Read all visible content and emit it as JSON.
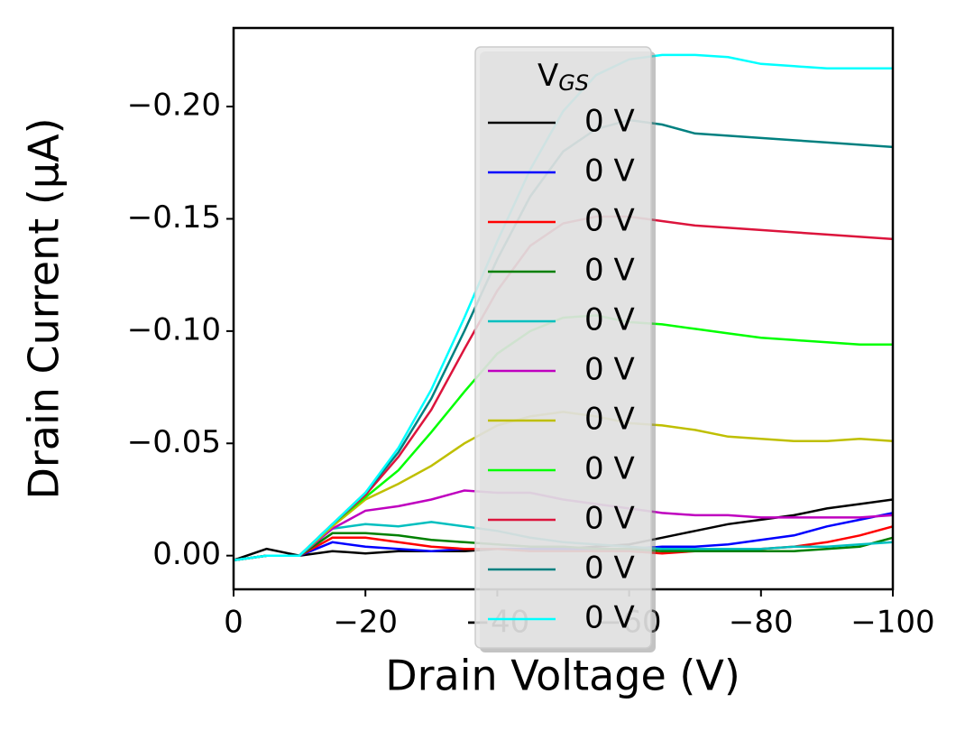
{
  "chart_data": {
    "type": "line",
    "x_label": "Drain Voltage (V)",
    "y_label": "Drain Current (μA)",
    "legend_title": "V",
    "legend_title_subscript": "GS",
    "legend": "upper center",
    "xlim": [
      0,
      -100
    ],
    "xticks": [
      0,
      {
        "value": -20,
        "label": "−20"
      },
      {
        "value": -40,
        "label": "−40"
      },
      {
        "value": -60,
        "label": "−60"
      },
      {
        "value": -80,
        "label": "−80"
      },
      {
        "value": -100,
        "label": "−100"
      }
    ],
    "ylim": [
      0.015,
      -0.235
    ],
    "yticks": [
      {
        "value": 0,
        "label": "0.00"
      },
      {
        "value": -0.05,
        "label": "−0.05"
      },
      {
        "value": -0.1,
        "label": "−0.10"
      },
      {
        "value": -0.15,
        "label": "−0.15"
      },
      {
        "value": -0.2,
        "label": "−0.20"
      }
    ],
    "x": [
      0,
      -5,
      -10,
      -15,
      -20,
      -25,
      -30,
      -35,
      -40,
      -45,
      -50,
      -55,
      -60,
      -65,
      -70,
      -75,
      -80,
      -85,
      -90,
      -95,
      -100
    ],
    "series": [
      {
        "name": "0 V",
        "color": "#000000",
        "values": [
          0.002,
          -0.003,
          0,
          -0.002,
          -0.001,
          -0.002,
          -0.002,
          -0.002,
          -0.003,
          -0.003,
          -0.003,
          -0.004,
          -0.005,
          -0.008,
          -0.011,
          -0.014,
          -0.016,
          -0.018,
          -0.021,
          -0.023,
          -0.025
        ]
      },
      {
        "name": "0 V",
        "color": "#0000ff",
        "values": [
          0.002,
          0,
          0,
          -0.006,
          -0.004,
          -0.003,
          -0.002,
          -0.003,
          -0.003,
          -0.003,
          -0.003,
          -0.003,
          -0.003,
          -0.004,
          -0.004,
          -0.005,
          -0.007,
          -0.009,
          -0.013,
          -0.016,
          -0.019
        ]
      },
      {
        "name": "0 V",
        "color": "#ff0000",
        "values": [
          0.002,
          0,
          0,
          -0.008,
          -0.008,
          -0.006,
          -0.004,
          -0.003,
          -0.003,
          -0.002,
          -0.002,
          -0.002,
          -0.002,
          -0.001,
          -0.002,
          -0.002,
          -0.003,
          -0.004,
          -0.006,
          -0.009,
          -0.013
        ]
      },
      {
        "name": "0 V",
        "color": "#008000",
        "values": [
          0.002,
          0,
          0,
          -0.01,
          -0.01,
          -0.009,
          -0.007,
          -0.006,
          -0.005,
          -0.004,
          -0.004,
          -0.003,
          -0.003,
          -0.002,
          -0.002,
          -0.002,
          -0.002,
          -0.002,
          -0.003,
          -0.004,
          -0.008
        ]
      },
      {
        "name": "0 V",
        "color": "#00bfbf",
        "values": [
          0.002,
          0,
          0,
          -0.012,
          -0.014,
          -0.013,
          -0.015,
          -0.013,
          -0.011,
          -0.008,
          -0.006,
          -0.005,
          -0.004,
          -0.003,
          -0.003,
          -0.003,
          -0.003,
          -0.004,
          -0.004,
          -0.005,
          -0.006
        ]
      },
      {
        "name": "0 V",
        "color": "#bf00bf",
        "values": [
          0.002,
          0,
          0,
          -0.012,
          -0.02,
          -0.022,
          -0.025,
          -0.029,
          -0.028,
          -0.028,
          -0.025,
          -0.023,
          -0.021,
          -0.019,
          -0.018,
          -0.018,
          -0.017,
          -0.017,
          -0.017,
          -0.017,
          -0.018
        ]
      },
      {
        "name": "0 V",
        "color": "#bfbf00",
        "values": [
          0.002,
          0,
          0,
          -0.013,
          -0.025,
          -0.032,
          -0.04,
          -0.05,
          -0.058,
          -0.062,
          -0.064,
          -0.062,
          -0.059,
          -0.058,
          -0.056,
          -0.053,
          -0.052,
          -0.051,
          -0.051,
          -0.052,
          -0.051
        ]
      },
      {
        "name": "0 V",
        "color": "#00ff00",
        "values": [
          0.002,
          0,
          0,
          -0.014,
          -0.026,
          -0.038,
          -0.055,
          -0.073,
          -0.09,
          -0.1,
          -0.106,
          -0.107,
          -0.104,
          -0.103,
          -0.101,
          -0.099,
          -0.097,
          -0.096,
          -0.095,
          -0.094,
          -0.094
        ]
      },
      {
        "name": "0 V",
        "color": "#dc143c",
        "values": [
          0.002,
          0,
          0,
          -0.014,
          -0.027,
          -0.044,
          -0.065,
          -0.092,
          -0.118,
          -0.138,
          -0.148,
          -0.151,
          -0.151,
          -0.149,
          -0.147,
          -0.146,
          -0.145,
          -0.144,
          -0.143,
          -0.142,
          -0.141
        ]
      },
      {
        "name": "0 V",
        "color": "#008080",
        "values": [
          0.002,
          0,
          0,
          -0.014,
          -0.028,
          -0.046,
          -0.07,
          -0.1,
          -0.132,
          -0.16,
          -0.18,
          -0.19,
          -0.194,
          -0.192,
          -0.188,
          -0.187,
          -0.186,
          -0.185,
          -0.184,
          -0.183,
          -0.182
        ]
      },
      {
        "name": "0 V",
        "color": "#00ffff",
        "values": [
          0.002,
          0,
          0,
          -0.014,
          -0.028,
          -0.048,
          -0.074,
          -0.106,
          -0.14,
          -0.172,
          -0.198,
          -0.214,
          -0.221,
          -0.223,
          -0.223,
          -0.222,
          -0.219,
          -0.218,
          -0.217,
          -0.217,
          -0.217
        ]
      }
    ]
  }
}
